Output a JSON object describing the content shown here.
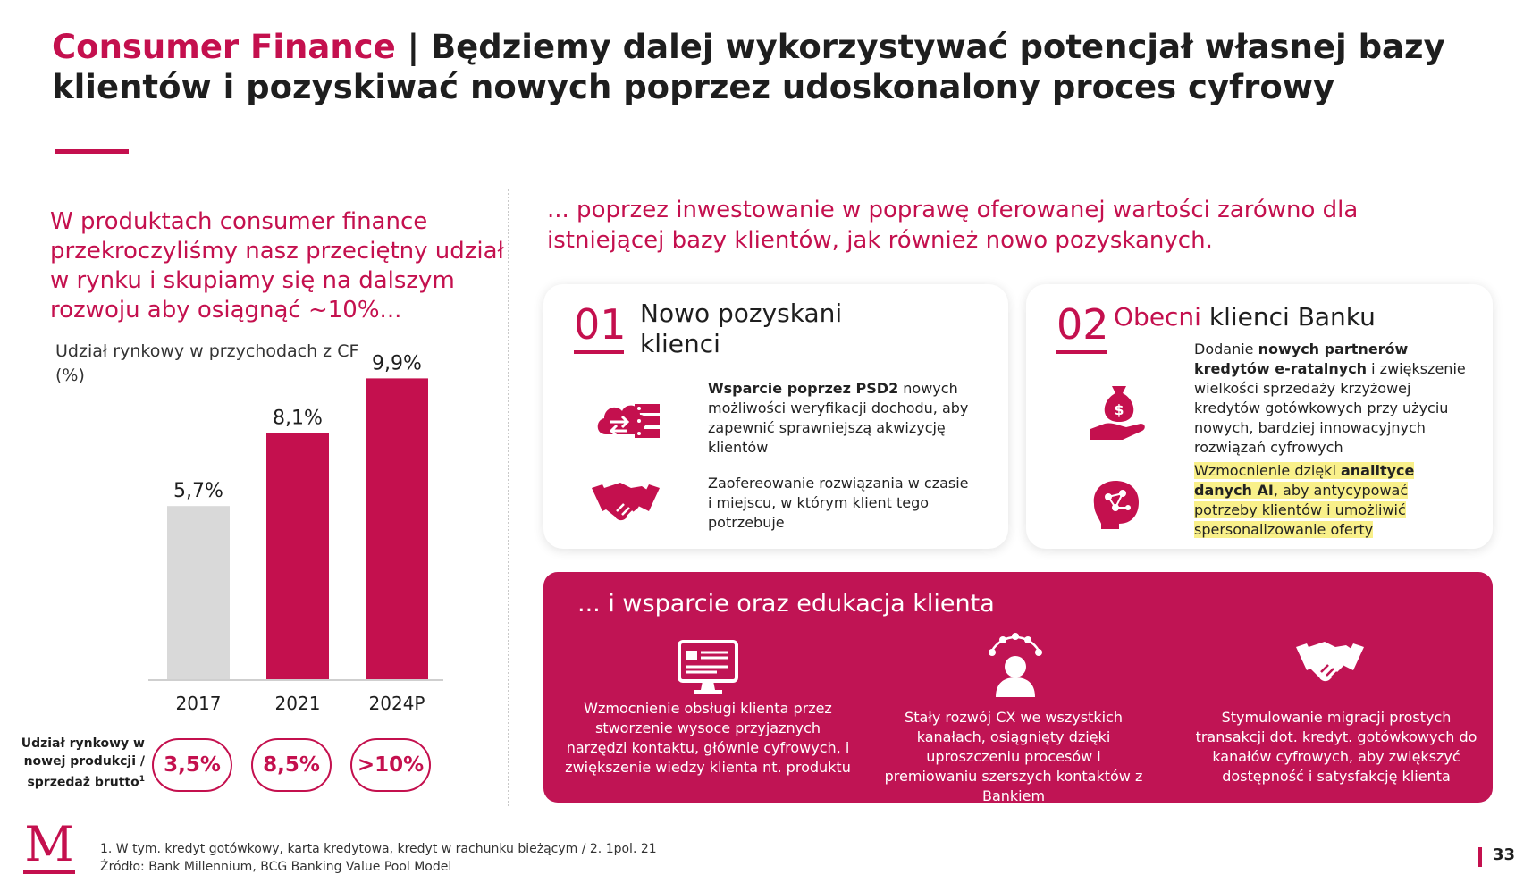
{
  "header": {
    "title_brand": "Consumer Finance",
    "title_separator": " | ",
    "title_text": "Będziemy dalej wykorzystywać potencjał własnej bazy klientów i pozyskiwać nowych poprzez udoskonalony proces cyfrowy"
  },
  "left": {
    "lead": "W produktach consumer finance przekroczyliśmy nasz przeciętny udział w rynku i skupiamy się na dalszym rozwoju aby osiągnąć ~10%...",
    "chart_caption": "Udział rynkowy w przychodach z CF (%)",
    "side_label": "Udział rynkowy w nowej produkcji / sprzedaż brutto",
    "side_label_sup": "1",
    "pills": [
      "3,5%",
      "8,5%",
      ">10%"
    ]
  },
  "chart_data": {
    "type": "bar",
    "title": "Udział rynkowy w przychodach z CF (%)",
    "categories": [
      "2017",
      "2021",
      "2024P"
    ],
    "values": [
      5.7,
      8.1,
      9.9
    ],
    "value_labels": [
      "5,7%",
      "8,1%",
      "9,9%"
    ],
    "bar_colors": [
      "#d9d9d9",
      "#c4104e",
      "#c4104e"
    ],
    "ylim": [
      0,
      10
    ],
    "grid": false,
    "legend": "none"
  },
  "right": {
    "lead": "... poprzez inwestowanie w poprawę oferowanej wartości zarówno dla istniejącej bazy klientów, jak również nowo pozyskanych.",
    "card1": {
      "number": "01",
      "title": "Nowo pozyskani klienci",
      "item1_bold": "Wsparcie poprzez PSD2",
      "item1_rest": " nowych możliwości weryfikacji dochodu, aby zapewnić sprawniejszą akwizycję klientów",
      "item2": "Zaofereowanie rozwiązania w czasie i miejscu, w którym klient tego potrzebuje"
    },
    "card2": {
      "number": "02",
      "title_accent": "Obecni",
      "title_rest": " klienci Banku",
      "item1_pre": "Dodanie ",
      "item1_bold": "nowych partnerów kredytów e-ratalnych",
      "item1_rest": " i zwiększenie wielkości sprzedaży krzyżowej kredytów gotówkowych przy użyciu nowych, bardziej innowacyjnych rozwiązań cyfrowych",
      "item2_pre": "Wzmocnienie dzięki ",
      "item2_bold": "analityce danych AI",
      "item2_rest": ", aby antycypować potrzeby klientów i umożliwić spersonalizowanie oferty"
    }
  },
  "bottom": {
    "title": "... i wsparcie oraz edukacja klienta",
    "items": [
      "Wzmocnienie obsługi klienta przez stworzenie wysoce przyjaznych narzędzi kontaktu, głównie cyfrowych, i zwiększenie wiedzy klienta nt. produktu",
      "Stały rozwój CX we wszystkich kanałach, osiągnięty dzięki uproszczeniu procesów i premiowaniu szerszych kontaktów z Bankiem",
      "Stymulowanie migracji prostych transakcji dot. kredyt. gotówkowych do kanałów cyfrowych, aby zwiększyć dostępność i satysfakcję klienta"
    ]
  },
  "footer": {
    "logo_letter": "M",
    "note1": "1. W tym. kredyt gotówkowy, karta kredytowa, kredyt w rachunku bieżącym / 2. 1pol. 21",
    "note2": "Źródło: Bank Millennium, BCG Banking Value Pool Model",
    "page": "33"
  },
  "colors": {
    "accent": "#c4104e",
    "gray_bar": "#d9d9d9",
    "highlight": "#f9f08a"
  },
  "icons": [
    "cloud-transfer-icon",
    "handshake-icon",
    "money-bag-hand-icon",
    "ai-brain-icon",
    "computer-screen-icon",
    "person-network-icon",
    "white-handshake-icon",
    "millennium-logo"
  ]
}
